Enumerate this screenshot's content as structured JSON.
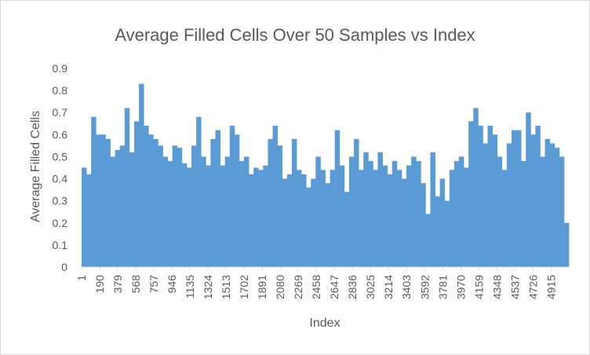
{
  "chart_data": {
    "type": "bar",
    "title": "Average Filled Cells Over 50 Samples vs Index",
    "x_label": "Index",
    "y_label": "Average Filled Cells",
    "color": "#5b9bd5",
    "x": [
      1,
      51,
      101,
      151,
      201,
      251,
      301,
      351,
      401,
      451,
      501,
      551,
      601,
      651,
      701,
      751,
      801,
      851,
      901,
      951,
      1001,
      1051,
      1101,
      1151,
      1201,
      1251,
      1301,
      1351,
      1401,
      1451,
      1501,
      1551,
      1601,
      1651,
      1701,
      1751,
      1801,
      1851,
      1901,
      1951,
      2001,
      2051,
      2101,
      2151,
      2201,
      2251,
      2301,
      2351,
      2401,
      2451,
      2501,
      2551,
      2601,
      2651,
      2701,
      2751,
      2801,
      2851,
      2901,
      2951,
      3001,
      3051,
      3101,
      3151,
      3201,
      3251,
      3301,
      3351,
      3401,
      3451,
      3501,
      3551,
      3601,
      3651,
      3701,
      3751,
      3801,
      3851,
      3901,
      3951,
      4001,
      4051,
      4101,
      4151,
      4201,
      4251,
      4301,
      4351,
      4401,
      4451,
      4501,
      4551,
      4601,
      4651,
      4701,
      4751,
      4801,
      4851,
      4901,
      4951,
      5001,
      5051
    ],
    "values": [
      0.45,
      0.42,
      0.68,
      0.6,
      0.6,
      0.58,
      0.5,
      0.53,
      0.55,
      0.72,
      0.52,
      0.66,
      0.83,
      0.64,
      0.6,
      0.58,
      0.55,
      0.5,
      0.48,
      0.55,
      0.54,
      0.47,
      0.45,
      0.55,
      0.68,
      0.5,
      0.46,
      0.58,
      0.62,
      0.46,
      0.5,
      0.64,
      0.6,
      0.48,
      0.5,
      0.42,
      0.45,
      0.44,
      0.46,
      0.58,
      0.64,
      0.55,
      0.4,
      0.42,
      0.58,
      0.44,
      0.42,
      0.36,
      0.4,
      0.5,
      0.44,
      0.38,
      0.44,
      0.62,
      0.46,
      0.34,
      0.5,
      0.58,
      0.44,
      0.52,
      0.48,
      0.44,
      0.52,
      0.46,
      0.42,
      0.48,
      0.44,
      0.4,
      0.46,
      0.5,
      0.48,
      0.38,
      0.24,
      0.52,
      0.32,
      0.4,
      0.3,
      0.44,
      0.48,
      0.5,
      0.45,
      0.66,
      0.72,
      0.64,
      0.56,
      0.64,
      0.6,
      0.5,
      0.44,
      0.56,
      0.62,
      0.62,
      0.48,
      0.7,
      0.6,
      0.64,
      0.5,
      0.58,
      0.56,
      0.54,
      0.5,
      0.2
    ],
    "xlim": [
      1,
      5101
    ],
    "xticks": [
      1,
      190,
      379,
      568,
      757,
      946,
      1135,
      1324,
      1513,
      1702,
      1891,
      2080,
      2269,
      2458,
      2647,
      2836,
      3025,
      3214,
      3403,
      3592,
      3781,
      3970,
      4159,
      4348,
      4537,
      4726,
      4915
    ],
    "ylim": [
      0,
      0.9
    ],
    "yticks": [
      0,
      0.1,
      0.2,
      0.3,
      0.4,
      0.5,
      0.6,
      0.7,
      0.8,
      0.9
    ],
    "grid": false
  }
}
